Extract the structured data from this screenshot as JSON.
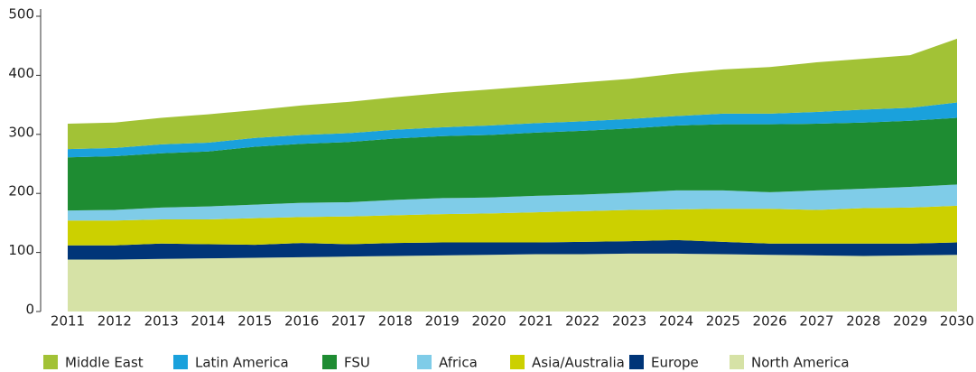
{
  "chart_data": {
    "type": "stacked_area",
    "categories": [
      "2011",
      "2012",
      "2013",
      "2014",
      "2015",
      "2016",
      "2017",
      "2018",
      "2019",
      "2020",
      "2021",
      "2022",
      "2023",
      "2024",
      "2025",
      "2026",
      "2027",
      "2028",
      "2029",
      "2030"
    ],
    "series": [
      {
        "name": "Middle East",
        "color": "#a2c236",
        "values": [
          43,
          43,
          45,
          48,
          47,
          50,
          53,
          55,
          58,
          61,
          63,
          66,
          68,
          72,
          75,
          79,
          84,
          86,
          89,
          108
        ]
      },
      {
        "name": "Latin America",
        "color": "#1aa1dc",
        "values": [
          14,
          14,
          15,
          15,
          15,
          15,
          15,
          15,
          15,
          16,
          16,
          16,
          16,
          16,
          18,
          18,
          20,
          22,
          22,
          26
        ]
      },
      {
        "name": "FSU",
        "color": "#1e8c32",
        "values": [
          90,
          91,
          92,
          93,
          98,
          100,
          102,
          104,
          105,
          106,
          107,
          108,
          109,
          110,
          112,
          115,
          113,
          112,
          112,
          113
        ]
      },
      {
        "name": "Africa",
        "color": "#7fcce8",
        "values": [
          17,
          18,
          20,
          22,
          23,
          24,
          24,
          26,
          27,
          27,
          28,
          28,
          29,
          32,
          31,
          28,
          33,
          33,
          35,
          36
        ]
      },
      {
        "name": "Asia/Australia",
        "color": "#ccd000",
        "values": [
          42,
          42,
          41,
          42,
          45,
          44,
          47,
          47,
          48,
          49,
          51,
          52,
          53,
          52,
          56,
          59,
          57,
          60,
          61,
          62
        ]
      },
      {
        "name": "Europe",
        "color": "#003578",
        "values": [
          24,
          24,
          26,
          24,
          22,
          24,
          21,
          22,
          22,
          21,
          20,
          21,
          21,
          23,
          21,
          19,
          20,
          21,
          20,
          21
        ]
      },
      {
        "name": "North America",
        "color": "#d6e2a6",
        "values": [
          88,
          88,
          89,
          90,
          91,
          92,
          93,
          94,
          95,
          96,
          97,
          97,
          98,
          98,
          97,
          96,
          95,
          94,
          95,
          96
        ]
      }
    ],
    "ylim": [
      0,
      500
    ],
    "yticks": [
      0,
      100,
      200,
      300,
      400,
      500
    ],
    "legend": "bottom"
  }
}
